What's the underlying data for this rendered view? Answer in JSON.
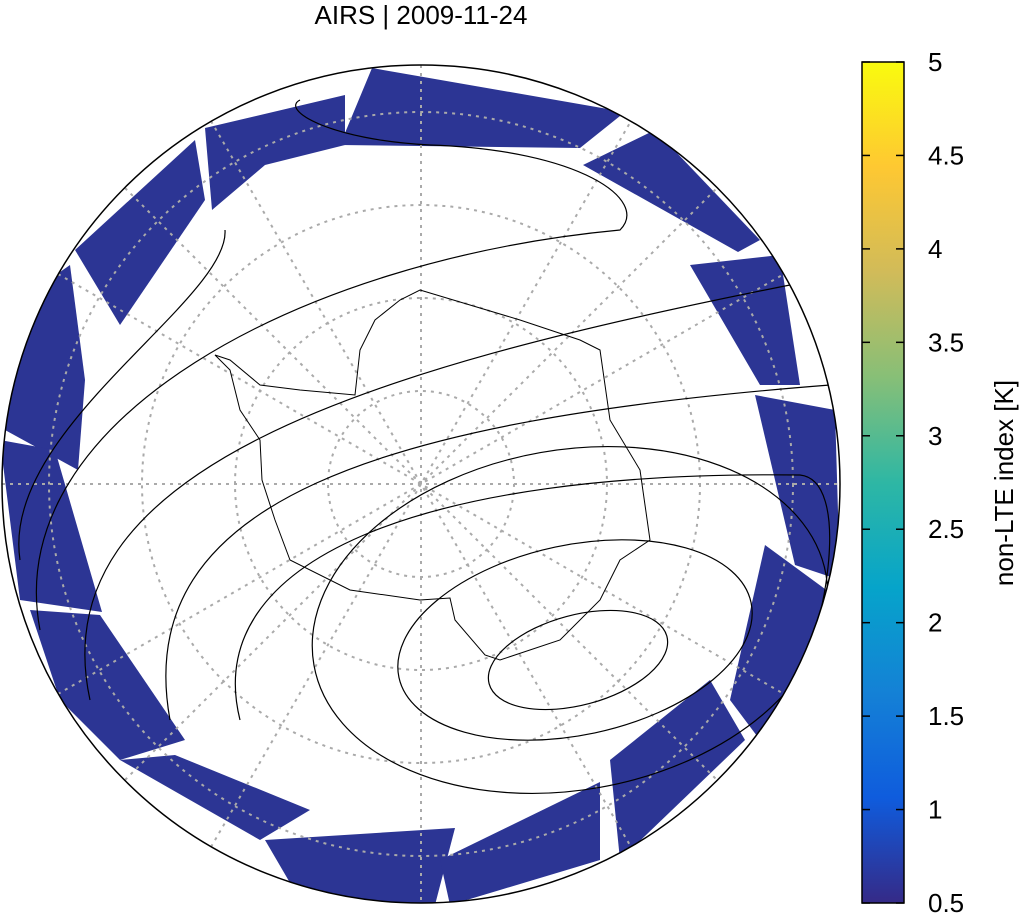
{
  "title": "AIRS | 2009-11-24",
  "colorbar": {
    "label": "non-LTE index [K]",
    "lim": [
      0.5,
      5
    ],
    "ticks": [
      0.5,
      1,
      1.5,
      2,
      2.5,
      3,
      3.5,
      4,
      4.5,
      5
    ],
    "colors": [
      "#352a87",
      "#0f5cdd",
      "#1481d6",
      "#06a4ca",
      "#2eb7a4",
      "#87bf77",
      "#d1bb59",
      "#fec832",
      "#f9fb0e"
    ]
  }
}
